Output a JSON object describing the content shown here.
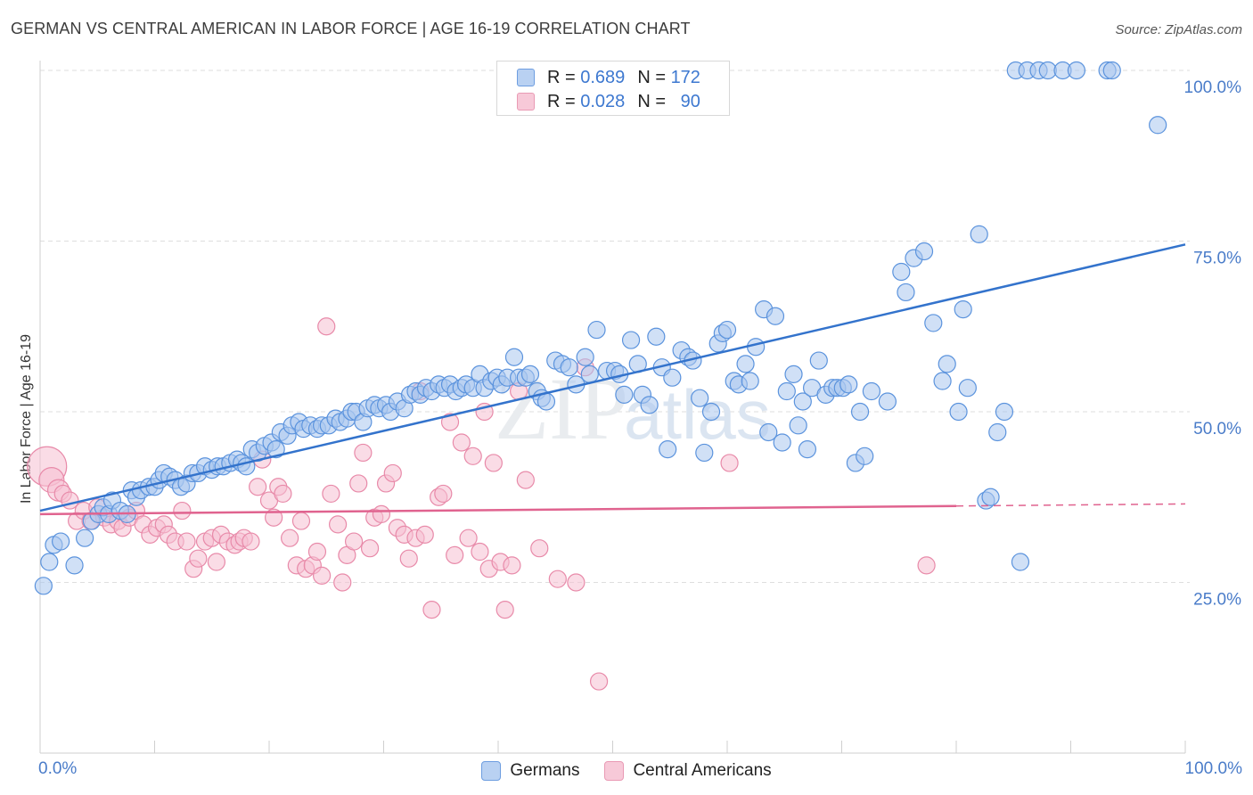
{
  "chart_data": {
    "type": "scatter",
    "title": "GERMAN VS CENTRAL AMERICAN IN LABOR FORCE | AGE 16-19 CORRELATION CHART",
    "source": "Source: ZipAtlas.com",
    "ylabel": "In Labor Force | Age 16-19",
    "xlabel": "",
    "xlim": [
      0,
      100
    ],
    "ylim": [
      0,
      105
    ],
    "x_tick_labels": [
      "0.0%",
      "100.0%"
    ],
    "y_ticks": [
      25,
      50,
      75,
      100
    ],
    "y_tick_labels": [
      "25.0%",
      "50.0%",
      "75.0%",
      "100.0%"
    ],
    "grid": true,
    "watermark": "ZIPatlas",
    "legend": {
      "placement": "top-center",
      "entries": [
        {
          "r_label": "R =",
          "r_value": "0.689",
          "n_label": "N =",
          "n_value": "172"
        },
        {
          "r_label": "R =",
          "r_value": "0.028",
          "n_label": "N =",
          "n_value": "90"
        }
      ]
    },
    "series": [
      {
        "name": "Germans",
        "color": "#5b93dd",
        "fill": "#a9c6ee",
        "trend": {
          "x0": 0,
          "y0": 35.5,
          "x1": 100,
          "y1": 74.5,
          "color": "#3373cc"
        },
        "points": [
          [
            0.3,
            24.5
          ],
          [
            0.8,
            28
          ],
          [
            1.2,
            30.5
          ],
          [
            1.8,
            31
          ],
          [
            3,
            27.5
          ],
          [
            3.9,
            31.5
          ],
          [
            4.5,
            34
          ],
          [
            5.1,
            35
          ],
          [
            5.5,
            36
          ],
          [
            6,
            35
          ],
          [
            6.3,
            37
          ],
          [
            7,
            35.5
          ],
          [
            7.6,
            35
          ],
          [
            8,
            38.5
          ],
          [
            8.4,
            37.5
          ],
          [
            8.8,
            38.5
          ],
          [
            9.5,
            39
          ],
          [
            10,
            39
          ],
          [
            10.4,
            40
          ],
          [
            10.8,
            41
          ],
          [
            11.3,
            40.5
          ],
          [
            11.8,
            40
          ],
          [
            12.3,
            39
          ],
          [
            12.8,
            39.5
          ],
          [
            13.3,
            41
          ],
          [
            13.8,
            41
          ],
          [
            14.4,
            42
          ],
          [
            15,
            41.5
          ],
          [
            15.5,
            42
          ],
          [
            16,
            42
          ],
          [
            16.6,
            42.5
          ],
          [
            17.2,
            43
          ],
          [
            17.6,
            42.5
          ],
          [
            18,
            42
          ],
          [
            18.5,
            44.5
          ],
          [
            19,
            44
          ],
          [
            19.6,
            45
          ],
          [
            20.2,
            45.5
          ],
          [
            20.6,
            44.5
          ],
          [
            21,
            47
          ],
          [
            21.6,
            46.5
          ],
          [
            22,
            48
          ],
          [
            22.6,
            48.5
          ],
          [
            23,
            47.5
          ],
          [
            23.6,
            48
          ],
          [
            24.2,
            47.5
          ],
          [
            24.6,
            48
          ],
          [
            25.2,
            48
          ],
          [
            25.8,
            49
          ],
          [
            26.2,
            48.5
          ],
          [
            26.8,
            49
          ],
          [
            27.2,
            50
          ],
          [
            27.6,
            50
          ],
          [
            28.2,
            48.5
          ],
          [
            28.6,
            50.5
          ],
          [
            29.2,
            51
          ],
          [
            29.6,
            50.5
          ],
          [
            30.2,
            51
          ],
          [
            30.6,
            50
          ],
          [
            31.2,
            51.5
          ],
          [
            31.8,
            50.5
          ],
          [
            32.3,
            52.5
          ],
          [
            32.8,
            53
          ],
          [
            33.2,
            52.5
          ],
          [
            33.7,
            53.5
          ],
          [
            34.2,
            53
          ],
          [
            34.8,
            54
          ],
          [
            35.3,
            53.5
          ],
          [
            35.8,
            54
          ],
          [
            36.3,
            53
          ],
          [
            36.8,
            53.5
          ],
          [
            37.2,
            54
          ],
          [
            37.8,
            53.5
          ],
          [
            38.4,
            55.5
          ],
          [
            38.8,
            53.5
          ],
          [
            39.4,
            54.5
          ],
          [
            39.9,
            55
          ],
          [
            40.3,
            54
          ],
          [
            40.8,
            55
          ],
          [
            41.4,
            58
          ],
          [
            41.8,
            55
          ],
          [
            42.4,
            55
          ],
          [
            42.8,
            55.5
          ],
          [
            43.4,
            53
          ],
          [
            43.8,
            52
          ],
          [
            44.2,
            51.5
          ],
          [
            45,
            57.5
          ],
          [
            45.6,
            57
          ],
          [
            46.2,
            56.5
          ],
          [
            46.8,
            54
          ],
          [
            47.6,
            58
          ],
          [
            48,
            55.5
          ],
          [
            48.6,
            62
          ],
          [
            49.5,
            56
          ],
          [
            50.2,
            56
          ],
          [
            50.6,
            55.5
          ],
          [
            51,
            52.5
          ],
          [
            51.6,
            60.5
          ],
          [
            52.2,
            57
          ],
          [
            52.6,
            52.5
          ],
          [
            53.2,
            51
          ],
          [
            53.8,
            61
          ],
          [
            54.3,
            56.5
          ],
          [
            54.8,
            44.5
          ],
          [
            55.2,
            55
          ],
          [
            56,
            59
          ],
          [
            56.6,
            58
          ],
          [
            57,
            57.5
          ],
          [
            57.6,
            52
          ],
          [
            58,
            44
          ],
          [
            58.6,
            50
          ],
          [
            59.2,
            60
          ],
          [
            59.6,
            61.5
          ],
          [
            60,
            62
          ],
          [
            60.6,
            54.5
          ],
          [
            61,
            54
          ],
          [
            61.6,
            57
          ],
          [
            62,
            54.5
          ],
          [
            62.5,
            59.5
          ],
          [
            63.2,
            65
          ],
          [
            63.6,
            47
          ],
          [
            64.2,
            64
          ],
          [
            64.8,
            45.5
          ],
          [
            65.2,
            53
          ],
          [
            65.8,
            55.5
          ],
          [
            66.2,
            48
          ],
          [
            66.6,
            51.5
          ],
          [
            67,
            44.5
          ],
          [
            67.4,
            53.5
          ],
          [
            68,
            57.5
          ],
          [
            68.6,
            52.5
          ],
          [
            69.2,
            53.5
          ],
          [
            69.6,
            53.5
          ],
          [
            70.1,
            53.5
          ],
          [
            70.6,
            54
          ],
          [
            71.2,
            42.5
          ],
          [
            71.6,
            50
          ],
          [
            72,
            43.5
          ],
          [
            72.6,
            53
          ],
          [
            74,
            51.5
          ],
          [
            75.2,
            70.5
          ],
          [
            75.6,
            67.5
          ],
          [
            76.3,
            72.5
          ],
          [
            77.2,
            73.5
          ],
          [
            78,
            63
          ],
          [
            78.8,
            54.5
          ],
          [
            79.2,
            57
          ],
          [
            80.2,
            50
          ],
          [
            80.6,
            65
          ],
          [
            81,
            53.5
          ],
          [
            82,
            76
          ],
          [
            82.6,
            37
          ],
          [
            83,
            37.5
          ],
          [
            83.6,
            47
          ],
          [
            84.2,
            50
          ],
          [
            85.2,
            100
          ],
          [
            85.6,
            28
          ],
          [
            86.2,
            100
          ],
          [
            87.2,
            100
          ],
          [
            88,
            100
          ],
          [
            89.3,
            100
          ],
          [
            90.5,
            100
          ],
          [
            93.2,
            100
          ],
          [
            93.6,
            100
          ],
          [
            97.6,
            92
          ]
        ]
      },
      {
        "name": "Central Americans",
        "color": "#e88aa9",
        "fill": "#f5c0d2",
        "trend": {
          "x0": 0,
          "y0": 35,
          "x1": 80,
          "y1": 36.2,
          "dash_to_x": 100,
          "dash_to_y": 36.5,
          "color": "#e0638f"
        },
        "points": [
          [
            0.6,
            42
          ],
          [
            1,
            40
          ],
          [
            1.6,
            38.5
          ],
          [
            2,
            38
          ],
          [
            2.6,
            37
          ],
          [
            3.2,
            34
          ],
          [
            3.8,
            35.5
          ],
          [
            4.4,
            34
          ],
          [
            5,
            36
          ],
          [
            5.6,
            34.5
          ],
          [
            6.2,
            33.5
          ],
          [
            6.8,
            34
          ],
          [
            7.2,
            33
          ],
          [
            7.8,
            34.5
          ],
          [
            8.4,
            35.5
          ],
          [
            9,
            33.5
          ],
          [
            9.6,
            32
          ],
          [
            10.2,
            33
          ],
          [
            10.8,
            33.5
          ],
          [
            11.2,
            32
          ],
          [
            11.8,
            31
          ],
          [
            12.4,
            35.5
          ],
          [
            12.8,
            31
          ],
          [
            13.4,
            27
          ],
          [
            13.8,
            28.5
          ],
          [
            14.4,
            31
          ],
          [
            15,
            31.5
          ],
          [
            15.4,
            28
          ],
          [
            15.8,
            32
          ],
          [
            16.4,
            31
          ],
          [
            17,
            30.5
          ],
          [
            17.4,
            31
          ],
          [
            17.8,
            31.5
          ],
          [
            18.4,
            31
          ],
          [
            19,
            39
          ],
          [
            19.4,
            43
          ],
          [
            20,
            37
          ],
          [
            20.4,
            34.5
          ],
          [
            20.8,
            39
          ],
          [
            21.2,
            38
          ],
          [
            21.8,
            31.5
          ],
          [
            22.4,
            27.5
          ],
          [
            22.8,
            34
          ],
          [
            23.2,
            27
          ],
          [
            23.8,
            27.5
          ],
          [
            24.2,
            29.5
          ],
          [
            24.6,
            26
          ],
          [
            25,
            62.5
          ],
          [
            25.4,
            38
          ],
          [
            26,
            33.5
          ],
          [
            26.4,
            25
          ],
          [
            26.8,
            29
          ],
          [
            27.4,
            31
          ],
          [
            27.8,
            39.5
          ],
          [
            28.2,
            44
          ],
          [
            28.8,
            30
          ],
          [
            29.2,
            34.5
          ],
          [
            29.8,
            35
          ],
          [
            30.2,
            39.5
          ],
          [
            30.8,
            41
          ],
          [
            31.2,
            33
          ],
          [
            31.8,
            32
          ],
          [
            32.2,
            28.5
          ],
          [
            32.8,
            31.5
          ],
          [
            33.2,
            53
          ],
          [
            33.6,
            32
          ],
          [
            34.2,
            21
          ],
          [
            34.8,
            37.5
          ],
          [
            35.2,
            38
          ],
          [
            35.8,
            48.5
          ],
          [
            36.2,
            29
          ],
          [
            36.8,
            45.5
          ],
          [
            37.4,
            31.5
          ],
          [
            37.8,
            43.5
          ],
          [
            38.4,
            29.5
          ],
          [
            38.8,
            50
          ],
          [
            39.2,
            27
          ],
          [
            39.6,
            42.5
          ],
          [
            40.2,
            28
          ],
          [
            40.6,
            21
          ],
          [
            41.2,
            27.5
          ],
          [
            41.8,
            53
          ],
          [
            42.4,
            40
          ],
          [
            43.6,
            30
          ],
          [
            45.2,
            25.5
          ],
          [
            46.8,
            25
          ],
          [
            47.6,
            56.5
          ],
          [
            48.8,
            10.5
          ],
          [
            60.2,
            42.5
          ],
          [
            77.4,
            27.5
          ]
        ]
      }
    ]
  }
}
